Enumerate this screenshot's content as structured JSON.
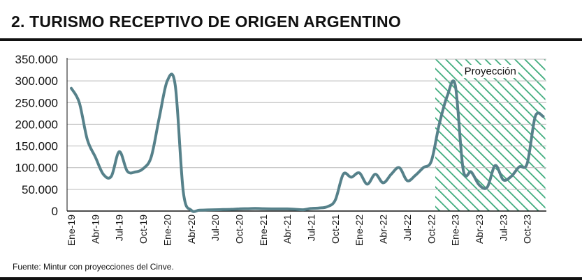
{
  "chart_data": {
    "type": "line",
    "title": "2. TURISMO RECEPTIVO DE ORIGEN ARGENTINO",
    "source": "Fuente: Mintur con proyecciones del Cinve.",
    "ylim": [
      0,
      350000
    ],
    "y_ticks": [
      0,
      50000,
      100000,
      150000,
      200000,
      250000,
      300000,
      350000
    ],
    "y_tick_labels": [
      "0",
      "50.000",
      "100.000",
      "150.000",
      "200.000",
      "250.000",
      "300.000",
      "350.000"
    ],
    "grid": "horizontal",
    "x_tick_labels": [
      "Ene-19",
      "Abr-19",
      "Jul-19",
      "Oct-19",
      "Ene-20",
      "Abr-20",
      "Jul-20",
      "Oct-20",
      "Ene-21",
      "Abr-21",
      "Jul-21",
      "Oct-21",
      "Ene-22",
      "Abr-22",
      "Jul-22",
      "Oct-22",
      "Ene-23",
      "Abr-23",
      "Jul-23",
      "Oct-23"
    ],
    "x_tick_month_index": [
      0,
      3,
      6,
      9,
      12,
      15,
      18,
      21,
      24,
      27,
      30,
      33,
      36,
      39,
      42,
      45,
      48,
      51,
      54,
      57
    ],
    "projection": {
      "label": "Proyección",
      "start_month_index": 45.5,
      "end_month_index": 59,
      "color": "#3aaa7a"
    },
    "series": [
      {
        "color": "#56818a",
        "x": [
          0,
          1,
          2,
          3,
          4,
          5,
          6,
          7,
          8,
          9,
          10,
          11,
          12,
          13,
          14,
          15,
          16,
          17,
          18,
          19,
          20,
          21,
          22,
          23,
          24,
          25,
          26,
          27,
          28,
          29,
          30,
          31,
          32,
          33,
          34,
          35,
          36,
          37,
          38,
          39,
          40,
          41,
          42,
          43,
          44,
          45,
          46,
          47,
          48,
          49,
          50,
          51,
          52,
          53,
          54,
          55,
          56,
          57,
          58,
          59
        ],
        "values": [
          283000,
          250000,
          165000,
          125000,
          85000,
          80000,
          137000,
          92000,
          90000,
          98000,
          125000,
          215000,
          300000,
          290000,
          45000,
          2000,
          2000,
          2500,
          3000,
          3500,
          4000,
          5000,
          5500,
          6000,
          5500,
          5000,
          5000,
          5000,
          4000,
          3000,
          6000,
          7000,
          10000,
          25000,
          85000,
          78000,
          88000,
          62000,
          85000,
          65000,
          85000,
          100000,
          70000,
          82000,
          100000,
          115000,
          200000,
          265000,
          290000,
          95000,
          90000,
          60000,
          55000,
          105000,
          72000,
          80000,
          102000,
          110000,
          218000,
          218000
        ]
      }
    ]
  }
}
